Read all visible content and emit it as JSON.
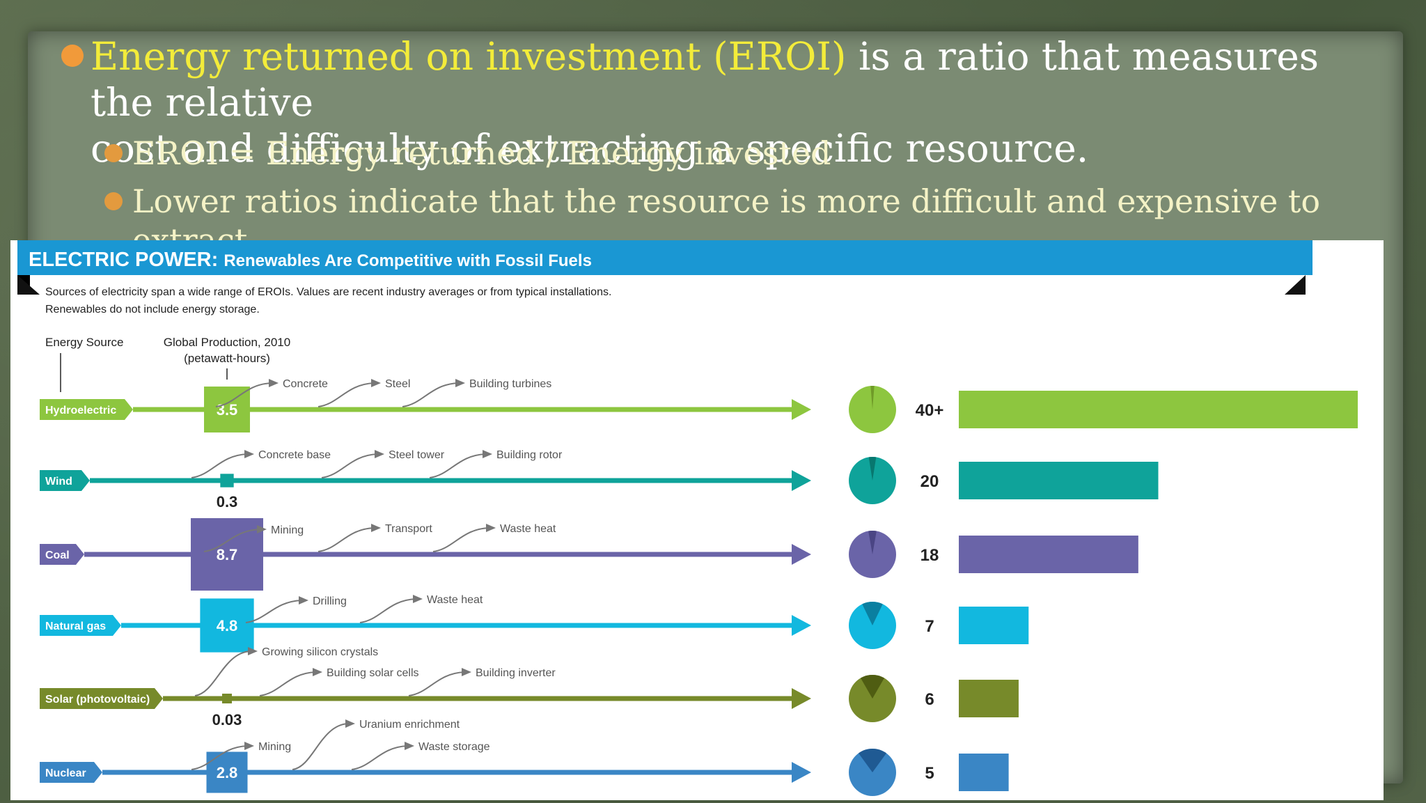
{
  "slide": {
    "heading_highlight": "Energy returned on investment (EROI)",
    "heading_rest_line1": " is a ratio that measures the relative",
    "heading_line2": "cost and difficulty of extracting a specific resource.",
    "sub_bullets": [
      "EROI = Energy returned / Energy invested",
      "Lower ratios indicate that the resource is more difficult and expensive to extract."
    ]
  },
  "infographic": {
    "banner_bold": "ELECTRIC POWER:",
    "banner_rest": "Renewables Are Competitive with Fossil Fuels",
    "note_line1": "Sources of electricity span a wide range of EROIs. Values are recent industry averages or from typical installations.",
    "note_line2": "Renewables do not include energy storage.",
    "col_source": "Energy Source",
    "col_production_1": "Global Production, 2010",
    "col_production_2": "(petawatt-hours)"
  },
  "chart_data": {
    "type": "bar",
    "categories": [
      "Hydroelectric",
      "Wind",
      "Coal",
      "Natural gas",
      "Solar (photovoltaic)",
      "Nuclear"
    ],
    "production_labels": [
      "3.5",
      "0.3",
      "8.7",
      "4.8",
      "0.03",
      "2.8"
    ],
    "production": [
      3.5,
      0.3,
      8.7,
      4.8,
      0.03,
      2.8
    ],
    "eroi_labels": [
      "40+",
      "20",
      "18",
      "7",
      "6",
      "5"
    ],
    "eroi": [
      40,
      20,
      18,
      7,
      6,
      5
    ],
    "steps": [
      [
        "Concrete",
        "Steel",
        "Building turbines"
      ],
      [
        "Concrete base",
        "Steel tower",
        "Building rotor"
      ],
      [
        "Mining",
        "Transport",
        "Waste heat"
      ],
      [
        "Drilling",
        "Waste heat"
      ],
      [
        "Growing silicon crystals",
        "Building solar cells",
        "Building inverter"
      ],
      [
        "Mining",
        "Uranium enrichment",
        "Waste storage"
      ]
    ],
    "colors": [
      "#8dc63f",
      "#0fa39a",
      "#6a64a8",
      "#12b8df",
      "#778a2a",
      "#3a86c5"
    ],
    "colors_dark": [
      "#6f9a28",
      "#08776f",
      "#4a4584",
      "#0a7fa0",
      "#4f5d12",
      "#1f5a93"
    ]
  }
}
